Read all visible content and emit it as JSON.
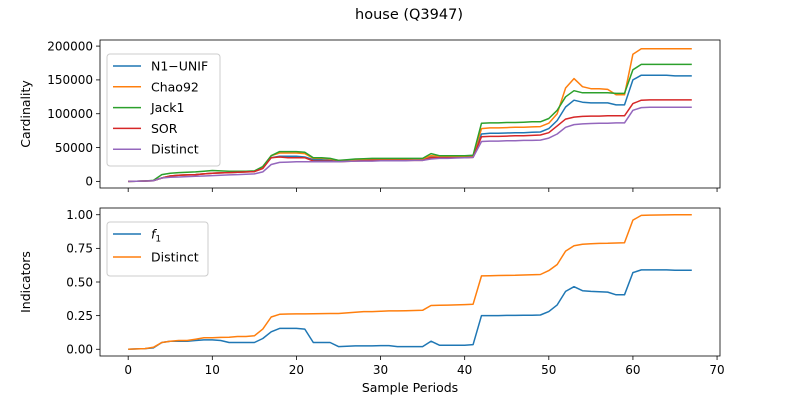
{
  "title": "house (Q3947)",
  "chart_data": [
    {
      "type": "line",
      "ylabel": "Cardinality",
      "xlabel": "",
      "xlim": [
        -3.35,
        70.35
      ],
      "ylim": [
        -9800,
        209000
      ],
      "xticks": [
        0,
        10,
        20,
        30,
        40,
        50,
        60,
        70
      ],
      "yticks": [
        0,
        50000,
        100000,
        150000,
        200000
      ],
      "ytick_labels": [
        "0",
        "50000",
        "100000",
        "150000",
        "200000"
      ],
      "legend_position": "upper-left",
      "x": [
        0,
        1,
        2,
        3,
        4,
        5,
        6,
        7,
        8,
        9,
        10,
        11,
        12,
        13,
        14,
        15,
        16,
        17,
        18,
        19,
        20,
        21,
        22,
        23,
        24,
        25,
        26,
        27,
        28,
        29,
        30,
        31,
        32,
        33,
        34,
        35,
        36,
        37,
        38,
        39,
        40,
        41,
        42,
        43,
        44,
        45,
        46,
        47,
        48,
        49,
        50,
        51,
        52,
        53,
        54,
        55,
        56,
        57,
        58,
        59,
        60,
        61,
        62,
        63,
        64,
        65,
        66,
        67
      ],
      "series": [
        {
          "name": "N1−UNIF",
          "color": "#1f77b4",
          "values": [
            0,
            200,
            500,
            1000,
            5000,
            8000,
            9000,
            9500,
            10000,
            11000,
            12000,
            12500,
            13000,
            13500,
            14000,
            14500,
            20000,
            35000,
            37000,
            37000,
            37000,
            36000,
            32000,
            32000,
            31000,
            30000,
            30500,
            31000,
            31500,
            32000,
            32000,
            32000,
            32000,
            32000,
            32000,
            32000,
            37000,
            36000,
            36000,
            36000,
            36000,
            36500,
            70000,
            71000,
            71000,
            71500,
            72000,
            72000,
            72500,
            73000,
            78000,
            90000,
            110000,
            120000,
            117000,
            116000,
            116000,
            116000,
            113000,
            113000,
            150000,
            157000,
            157000,
            157000,
            157000,
            156000,
            156000,
            156000
          ]
        },
        {
          "name": "Chao92",
          "color": "#ff7f0e",
          "values": [
            0,
            200,
            500,
            1000,
            5000,
            8000,
            9000,
            9500,
            10000,
            11000,
            12000,
            12500,
            13000,
            13500,
            14000,
            14500,
            20000,
            38000,
            42000,
            42000,
            42000,
            41000,
            34000,
            34000,
            33000,
            31000,
            31500,
            32000,
            32500,
            33000,
            33000,
            33000,
            33000,
            33000,
            33000,
            33000,
            38000,
            37000,
            37000,
            37000,
            37000,
            37500,
            78000,
            79000,
            79000,
            79500,
            80000,
            80000,
            80500,
            81000,
            86000,
            100000,
            138000,
            152000,
            140000,
            137000,
            137000,
            136000,
            128000,
            128000,
            188000,
            196000,
            196000,
            196000,
            196000,
            196000,
            196000,
            196000
          ]
        },
        {
          "name": "Jack1",
          "color": "#2ca02c",
          "values": [
            0,
            200,
            500,
            1500,
            10000,
            12000,
            13000,
            13500,
            14000,
            15000,
            16000,
            15500,
            15000,
            15000,
            15000,
            15500,
            22000,
            38000,
            44000,
            44000,
            44000,
            43000,
            35000,
            35000,
            34000,
            31000,
            32000,
            33000,
            33500,
            34000,
            34000,
            34000,
            34000,
            34000,
            34000,
            34000,
            41000,
            38000,
            38000,
            38000,
            38000,
            38500,
            86000,
            86500,
            86500,
            87000,
            87000,
            87500,
            88000,
            88000,
            93000,
            105000,
            125000,
            134000,
            131000,
            131000,
            131000,
            131000,
            130000,
            130000,
            165000,
            173000,
            173000,
            173000,
            173000,
            173000,
            173000,
            173000
          ]
        },
        {
          "name": "SOR",
          "color": "#d62728",
          "values": [
            0,
            200,
            500,
            1000,
            5000,
            8000,
            9000,
            9500,
            10000,
            11000,
            12000,
            12500,
            13000,
            13500,
            14000,
            14500,
            19000,
            35000,
            36000,
            35000,
            35000,
            35000,
            30000,
            30000,
            30000,
            29000,
            29500,
            30000,
            30500,
            31000,
            31000,
            31000,
            31000,
            31000,
            31000,
            31000,
            35000,
            35000,
            35000,
            35000,
            35000,
            35500,
            66000,
            66500,
            66500,
            67000,
            67500,
            67500,
            68000,
            68500,
            72000,
            82000,
            92000,
            95000,
            96000,
            96500,
            96500,
            97000,
            97000,
            97000,
            115000,
            120000,
            120500,
            120500,
            120500,
            120500,
            120500,
            120500
          ]
        },
        {
          "name": "Distinct",
          "color": "#9467bd",
          "values": [
            0,
            200,
            500,
            1000,
            5000,
            6000,
            6500,
            7000,
            7500,
            8000,
            8500,
            9000,
            9500,
            10000,
            10500,
            11000,
            14000,
            25000,
            28000,
            28500,
            29000,
            29000,
            29000,
            29000,
            29000,
            29000,
            29500,
            30000,
            30000,
            30000,
            30500,
            30500,
            30500,
            30500,
            31000,
            31000,
            33000,
            34000,
            34000,
            34500,
            35000,
            35500,
            59000,
            59500,
            59500,
            60000,
            60000,
            60500,
            60500,
            61000,
            64000,
            70000,
            80000,
            84000,
            85000,
            85500,
            86000,
            86000,
            86500,
            86500,
            105000,
            109000,
            109500,
            109500,
            109500,
            109500,
            109500,
            109500
          ]
        }
      ]
    },
    {
      "type": "line",
      "ylabel": "Indicators",
      "xlabel": "Sample Periods",
      "xlim": [
        -3.35,
        70.35
      ],
      "ylim": [
        -0.05,
        1.05
      ],
      "xticks": [
        0,
        10,
        20,
        30,
        40,
        50,
        60,
        70
      ],
      "yticks": [
        0,
        0.25,
        0.5,
        0.75,
        1.0
      ],
      "ytick_labels": [
        "0.00",
        "0.25",
        "0.50",
        "0.75",
        "1.00"
      ],
      "legend_position": "upper-left",
      "x": [
        0,
        1,
        2,
        3,
        4,
        5,
        6,
        7,
        8,
        9,
        10,
        11,
        12,
        13,
        14,
        15,
        16,
        17,
        18,
        19,
        20,
        21,
        22,
        23,
        24,
        25,
        26,
        27,
        28,
        29,
        30,
        31,
        32,
        33,
        34,
        35,
        36,
        37,
        38,
        39,
        40,
        41,
        42,
        43,
        44,
        45,
        46,
        47,
        48,
        49,
        50,
        51,
        52,
        53,
        54,
        55,
        56,
        57,
        58,
        59,
        60,
        61,
        62,
        63,
        64,
        65,
        66,
        67
      ],
      "series": [
        {
          "name": "f1",
          "name_main": "f",
          "name_sub": "1",
          "color": "#1f77b4",
          "values": [
            0.0,
            0.003,
            0.005,
            0.01,
            0.05,
            0.06,
            0.06,
            0.06,
            0.065,
            0.07,
            0.07,
            0.065,
            0.05,
            0.05,
            0.05,
            0.05,
            0.08,
            0.13,
            0.155,
            0.155,
            0.155,
            0.15,
            0.05,
            0.05,
            0.05,
            0.02,
            0.022,
            0.025,
            0.025,
            0.025,
            0.027,
            0.027,
            0.02,
            0.02,
            0.02,
            0.02,
            0.06,
            0.03,
            0.03,
            0.03,
            0.03,
            0.035,
            0.25,
            0.25,
            0.25,
            0.252,
            0.252,
            0.253,
            0.253,
            0.255,
            0.28,
            0.33,
            0.43,
            0.465,
            0.435,
            0.43,
            0.428,
            0.425,
            0.405,
            0.405,
            0.57,
            0.59,
            0.59,
            0.59,
            0.59,
            0.588,
            0.588,
            0.588
          ]
        },
        {
          "name": "Distinct",
          "color": "#ff7f0e",
          "values": [
            0.0,
            0.003,
            0.005,
            0.015,
            0.05,
            0.06,
            0.065,
            0.065,
            0.075,
            0.085,
            0.085,
            0.088,
            0.09,
            0.095,
            0.095,
            0.1,
            0.15,
            0.24,
            0.26,
            0.262,
            0.263,
            0.263,
            0.264,
            0.265,
            0.266,
            0.266,
            0.27,
            0.275,
            0.28,
            0.28,
            0.282,
            0.285,
            0.285,
            0.287,
            0.288,
            0.29,
            0.325,
            0.327,
            0.328,
            0.33,
            0.332,
            0.335,
            0.545,
            0.547,
            0.548,
            0.549,
            0.55,
            0.552,
            0.554,
            0.556,
            0.585,
            0.63,
            0.73,
            0.77,
            0.78,
            0.785,
            0.787,
            0.788,
            0.79,
            0.792,
            0.96,
            0.995,
            0.997,
            0.998,
            0.999,
            1.0,
            1.0,
            1.0
          ]
        }
      ]
    }
  ]
}
